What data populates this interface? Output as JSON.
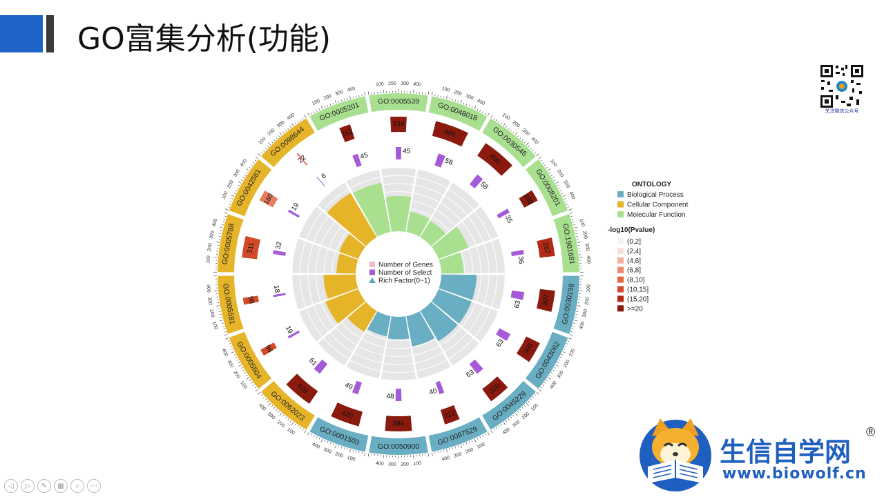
{
  "slide": {
    "title": "GO富集分析(功能)"
  },
  "colors": {
    "accent_blue": "#1e64c8",
    "bp": "#6aaec4",
    "cc": "#e6b429",
    "mf": "#a8e090",
    "bar_dark": "#8b1a0e",
    "bar_mid": "#d24a2a",
    "bar_light": "#e87c60",
    "select_bar": "#a55bd8"
  },
  "chart_data": {
    "type": "circular-go-enrichment",
    "center_legend": [
      {
        "label": "Number of Genes",
        "color": "#f2b8c6",
        "shape": "square"
      },
      {
        "label": "Number of Select",
        "color": "#a55bd8",
        "shape": "square"
      },
      {
        "label": "Rich Factor(0~1)",
        "color": "#5aaab8",
        "shape": "triangle"
      }
    ],
    "ontology_legend": {
      "title": "ONTOLOGY",
      "items": [
        {
          "label": "Biological Process",
          "color": "#6aaec4"
        },
        {
          "label": "Cellular Component",
          "color": "#e6b429"
        },
        {
          "label": "Molecular Function",
          "color": "#a8e090"
        }
      ]
    },
    "pvalue_legend": {
      "title": "-log10(Pvalue)",
      "items": [
        {
          "label": "(0,2]",
          "color": "#f3f3f3"
        },
        {
          "label": "(2,4]",
          "color": "#f5e0da"
        },
        {
          "label": "(4,6]",
          "color": "#f2b3a3"
        },
        {
          "label": "(6,8]",
          "color": "#ec8a70"
        },
        {
          "label": "(8,10]",
          "color": "#e06a46"
        },
        {
          "label": "(10,15]",
          "color": "#d24a2a"
        },
        {
          "label": "(15,20]",
          "color": "#b22a16"
        },
        {
          "label": ">=20",
          "color": "#8b1a0e"
        }
      ]
    },
    "axis_ticks": [
      "100",
      "200",
      "300",
      "400"
    ],
    "terms": [
      {
        "id": "GO:0005539",
        "ontology": "MF",
        "genes": 234,
        "select": 45,
        "rich": 0.55,
        "pcolor": "#8b1a0e"
      },
      {
        "id": "GO:0048018",
        "ontology": "MF",
        "genes": 489,
        "select": 58,
        "rich": 0.32,
        "pcolor": "#8b1a0e"
      },
      {
        "id": "GO:0030546",
        "ontology": "MF",
        "genes": 496,
        "select": 58,
        "rich": 0.3,
        "pcolor": "#8b1a0e"
      },
      {
        "id": "GO:0008201",
        "ontology": "MF",
        "genes": 168,
        "select": 35,
        "rich": 0.5,
        "pcolor": "#8b1a0e"
      },
      {
        "id": "GO:1901681",
        "ontology": "MF",
        "genes": 267,
        "select": 36,
        "rich": 0.35,
        "pcolor": "#b22a16"
      },
      {
        "id": "GO:0030198",
        "ontology": "BP",
        "genes": 307,
        "select": 63,
        "rich": 0.55,
        "pcolor": "#8b1a0e"
      },
      {
        "id": "GO:0043062",
        "ontology": "BP",
        "genes": 309,
        "select": 63,
        "rich": 0.55,
        "pcolor": "#8b1a0e"
      },
      {
        "id": "GO:0045229",
        "ontology": "BP",
        "genes": 310,
        "select": 63,
        "rich": 0.55,
        "pcolor": "#8b1a0e"
      },
      {
        "id": "GO:0097529",
        "ontology": "BP",
        "genes": 222,
        "select": 40,
        "rich": 0.48,
        "pcolor": "#8b1a0e"
      },
      {
        "id": "GO:0050900",
        "ontology": "BP",
        "genes": 384,
        "select": 48,
        "rich": 0.35,
        "pcolor": "#8b1a0e"
      },
      {
        "id": "GO:0001503",
        "ontology": "BP",
        "genes": 420,
        "select": 49,
        "rich": 0.32,
        "pcolor": "#8b1a0e"
      },
      {
        "id": "GO:0062023",
        "ontology": "CC",
        "genes": 429,
        "select": 61,
        "rich": 0.38,
        "pcolor": "#8b1a0e"
      },
      {
        "id": "GO:0005604",
        "ontology": "CC",
        "genes": 96,
        "select": 19,
        "rich": 0.55,
        "pcolor": "#d24a2a"
      },
      {
        "id": "GO:0005581",
        "ontology": "CC",
        "genes": 98,
        "select": 18,
        "rich": 0.5,
        "pcolor": "#d24a2a"
      },
      {
        "id": "GO:0005788",
        "ontology": "CC",
        "genes": 311,
        "select": 32,
        "rich": 0.3,
        "pcolor": "#d24a2a"
      },
      {
        "id": "GO:0042581",
        "ontology": "CC",
        "genes": 160,
        "select": 19,
        "rich": 0.32,
        "pcolor": "#e87c60"
      },
      {
        "id": "GO:0098644",
        "ontology": "CC",
        "genes": 22,
        "select": 6,
        "rich": 0.8,
        "pcolor": "#e87c60"
      },
      {
        "id": "GO:0005201",
        "ontology": "MF",
        "genes": 162,
        "select": 45,
        "rich": 0.78,
        "pcolor": "#8b1a0e"
      }
    ]
  },
  "qr": {
    "caption": "关注微信公众号"
  },
  "brand": {
    "name": "生信自学网",
    "reg_mark": "®",
    "url": "www.biowolf.cn"
  },
  "toolbar": {
    "buttons": [
      {
        "name": "prev-slide-button",
        "icon": "◁"
      },
      {
        "name": "next-slide-button",
        "icon": "▷"
      },
      {
        "name": "pen-button",
        "icon": "✎"
      },
      {
        "name": "slides-button",
        "icon": "▦"
      },
      {
        "name": "zoom-button",
        "icon": "⌕"
      },
      {
        "name": "more-button",
        "icon": "⋯"
      }
    ]
  }
}
